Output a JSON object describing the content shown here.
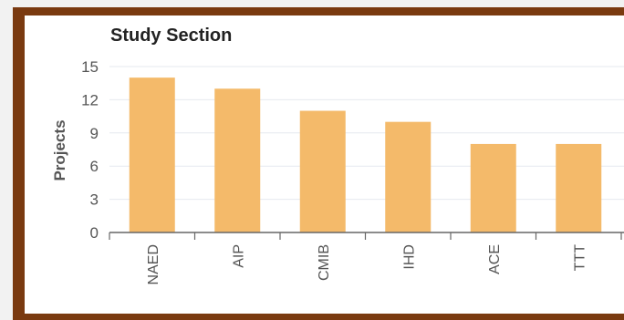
{
  "colors": {
    "frame": "#7a3a10",
    "bar": "#f4ba6a",
    "grid": "#e6e9ef",
    "axis": "#666666",
    "text": "#222222",
    "tick_text": "#555555"
  },
  "chart_data": {
    "type": "bar",
    "title": "Study Section",
    "xlabel": "",
    "ylabel": "Projects",
    "categories": [
      "NAED",
      "AIP",
      "CMIB",
      "IHD",
      "ACE",
      "TTT"
    ],
    "values": [
      14,
      13,
      11,
      10,
      8,
      8
    ],
    "ylim": [
      0,
      15
    ],
    "yticks": [
      0,
      3,
      6,
      9,
      12,
      15
    ],
    "grid": true,
    "legend": "none"
  }
}
